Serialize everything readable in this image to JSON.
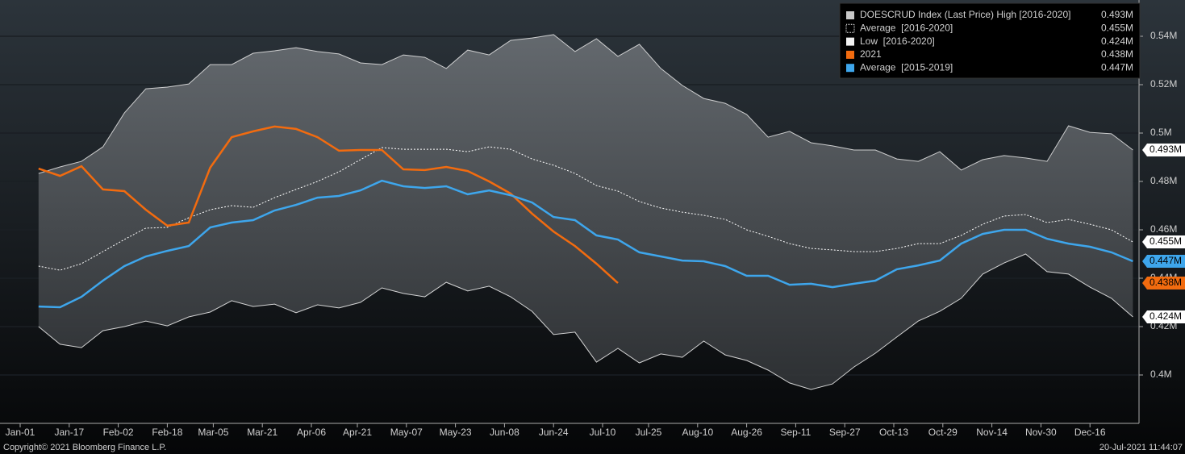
{
  "chart_data": {
    "type": "line",
    "footer_left": "Copyright© 2021 Bloomberg Finance L.P.",
    "footer_right": "20-Jul-2021 11:44:07",
    "x": [
      6,
      13,
      20,
      27,
      34,
      41,
      48,
      55,
      62,
      69,
      76,
      83,
      90,
      97,
      104,
      111,
      118,
      125,
      132,
      139,
      146,
      153,
      160,
      167,
      174,
      181,
      188,
      195,
      202,
      209,
      216,
      223,
      230,
      237,
      244,
      251,
      258,
      265,
      272,
      279,
      286,
      293,
      300,
      307,
      314,
      321,
      328,
      335,
      342,
      349,
      356,
      363
    ],
    "xlim": [
      0,
      365
    ],
    "xticks": [
      {
        "value": 0,
        "label": "Jan-01"
      },
      {
        "value": 16,
        "label": "Jan-17"
      },
      {
        "value": 32,
        "label": "Feb-02"
      },
      {
        "value": 48,
        "label": "Feb-18"
      },
      {
        "value": 63,
        "label": "Mar-05"
      },
      {
        "value": 79,
        "label": "Mar-21"
      },
      {
        "value": 95,
        "label": "Apr-06"
      },
      {
        "value": 110,
        "label": "Apr-21"
      },
      {
        "value": 126,
        "label": "May-07"
      },
      {
        "value": 142,
        "label": "May-23"
      },
      {
        "value": 158,
        "label": "Jun-08"
      },
      {
        "value": 174,
        "label": "Jun-24"
      },
      {
        "value": 190,
        "label": "Jul-10"
      },
      {
        "value": 205,
        "label": "Jul-25"
      },
      {
        "value": 221,
        "label": "Aug-10"
      },
      {
        "value": 237,
        "label": "Aug-26"
      },
      {
        "value": 253,
        "label": "Sep-11"
      },
      {
        "value": 269,
        "label": "Sep-27"
      },
      {
        "value": 285,
        "label": "Oct-13"
      },
      {
        "value": 301,
        "label": "Oct-29"
      },
      {
        "value": 317,
        "label": "Nov-14"
      },
      {
        "value": 333,
        "label": "Nov-30"
      },
      {
        "value": 349,
        "label": "Dec-16"
      }
    ],
    "ylim": [
      0.38,
      0.555
    ],
    "yticks": [
      {
        "value": 0.4,
        "label": "0.4M"
      },
      {
        "value": 0.42,
        "label": "0.42M"
      },
      {
        "value": 0.44,
        "label": "0.44M"
      },
      {
        "value": 0.46,
        "label": "0.46M"
      },
      {
        "value": 0.48,
        "label": "0.48M"
      },
      {
        "value": 0.5,
        "label": "0.5M"
      },
      {
        "value": 0.52,
        "label": "0.52M"
      },
      {
        "value": 0.54,
        "label": "0.54M"
      }
    ],
    "grid": true,
    "legend": "top-right",
    "series": [
      {
        "name": "DOESCRUD Index (Last Price) High [2016-2020]",
        "style": "band-high",
        "color": "#e6e6e6",
        "last_label": "0.493M",
        "values": [
          0.4833,
          0.486,
          0.4883,
          0.4943,
          0.5083,
          0.5183,
          0.519,
          0.5203,
          0.5283,
          0.5283,
          0.533,
          0.534,
          0.5353,
          0.5337,
          0.5327,
          0.529,
          0.5283,
          0.5323,
          0.5313,
          0.5267,
          0.5343,
          0.5323,
          0.5383,
          0.5393,
          0.5407,
          0.5337,
          0.539,
          0.5317,
          0.5367,
          0.5267,
          0.5197,
          0.5143,
          0.5123,
          0.5077,
          0.4983,
          0.5007,
          0.496,
          0.4947,
          0.493,
          0.493,
          0.4893,
          0.4883,
          0.4923,
          0.4847,
          0.489,
          0.4907,
          0.4897,
          0.4883,
          0.503,
          0.5003,
          0.4997,
          0.493
        ]
      },
      {
        "name": "Average  [2016-2020]",
        "style": "dotted",
        "color": "#ffffff",
        "last_label": "0.455M",
        "values": [
          0.445,
          0.4433,
          0.446,
          0.451,
          0.456,
          0.4607,
          0.461,
          0.465,
          0.4683,
          0.47,
          0.4693,
          0.4733,
          0.4767,
          0.48,
          0.484,
          0.489,
          0.494,
          0.4933,
          0.4933,
          0.4933,
          0.4923,
          0.4943,
          0.4933,
          0.4893,
          0.4867,
          0.4833,
          0.4783,
          0.476,
          0.4717,
          0.469,
          0.4673,
          0.466,
          0.4643,
          0.46,
          0.4573,
          0.4543,
          0.4523,
          0.4517,
          0.451,
          0.451,
          0.4523,
          0.4543,
          0.4543,
          0.4577,
          0.4623,
          0.4657,
          0.4663,
          0.463,
          0.4643,
          0.4623,
          0.46,
          0.455
        ]
      },
      {
        "name": "Low  [2016-2020]",
        "style": "band-low",
        "color": "#f2f2f2",
        "last_label": "0.424M",
        "values": [
          0.42,
          0.4127,
          0.4113,
          0.4183,
          0.42,
          0.4223,
          0.4203,
          0.424,
          0.426,
          0.4307,
          0.4283,
          0.4293,
          0.4257,
          0.429,
          0.4277,
          0.43,
          0.436,
          0.4337,
          0.4323,
          0.4383,
          0.4347,
          0.4367,
          0.4323,
          0.4263,
          0.4167,
          0.4177,
          0.4053,
          0.411,
          0.405,
          0.4087,
          0.4073,
          0.414,
          0.4083,
          0.406,
          0.402,
          0.3967,
          0.394,
          0.3963,
          0.4033,
          0.409,
          0.4157,
          0.4223,
          0.4263,
          0.4317,
          0.4417,
          0.4463,
          0.45,
          0.4427,
          0.4417,
          0.4363,
          0.4317,
          0.424
        ]
      },
      {
        "name": "2021",
        "style": "line",
        "color": "#f26b0f",
        "last_label": "0.438M",
        "values": [
          0.4853,
          0.4823,
          0.4863,
          0.4767,
          0.476,
          0.4683,
          0.4617,
          0.463,
          0.4857,
          0.4983,
          0.5007,
          0.5027,
          0.5017,
          0.4983,
          0.4927,
          0.493,
          0.493,
          0.485,
          0.4847,
          0.486,
          0.4843,
          0.48,
          0.475,
          0.4667,
          0.4593,
          0.4533,
          0.446,
          0.438,
          null,
          null,
          null,
          null,
          null,
          null,
          null,
          null,
          null,
          null,
          null,
          null,
          null,
          null,
          null,
          null,
          null,
          null,
          null,
          null,
          null,
          null,
          null,
          null
        ]
      },
      {
        "name": "Average  [2015-2019]",
        "style": "line",
        "color": "#3ea6ec",
        "last_label": "0.447M",
        "values": [
          0.4283,
          0.428,
          0.4323,
          0.439,
          0.445,
          0.449,
          0.4513,
          0.4533,
          0.461,
          0.463,
          0.464,
          0.468,
          0.4703,
          0.4733,
          0.474,
          0.4763,
          0.4803,
          0.478,
          0.4773,
          0.478,
          0.4747,
          0.4763,
          0.4743,
          0.4713,
          0.4653,
          0.464,
          0.4577,
          0.456,
          0.4507,
          0.449,
          0.4473,
          0.447,
          0.445,
          0.441,
          0.441,
          0.4373,
          0.4377,
          0.4363,
          0.4377,
          0.439,
          0.4437,
          0.4453,
          0.4473,
          0.4543,
          0.4583,
          0.46,
          0.46,
          0.4563,
          0.4543,
          0.453,
          0.4507,
          0.447
        ]
      }
    ]
  }
}
